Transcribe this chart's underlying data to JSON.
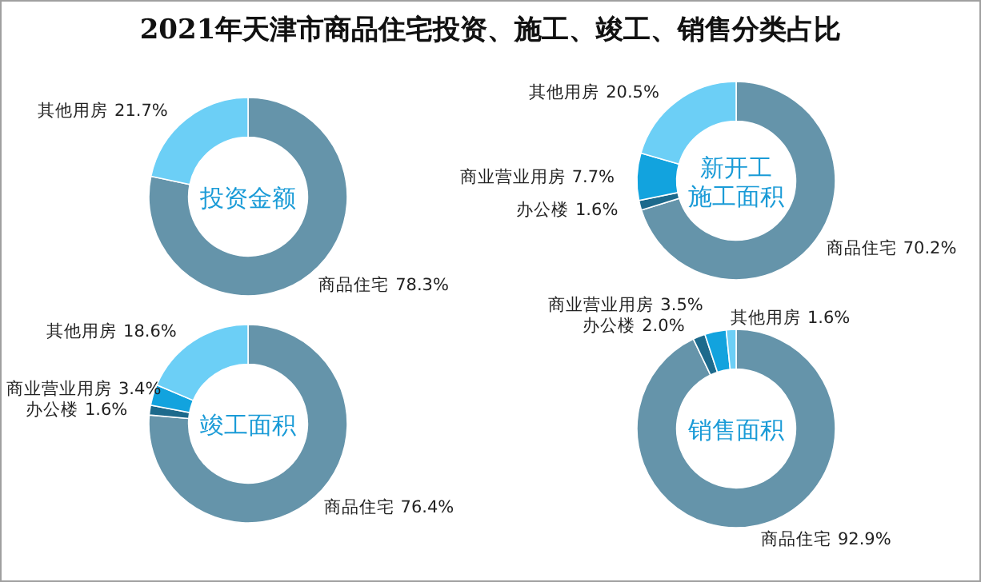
{
  "chart_data": [
    {
      "type": "donut",
      "title": "2021年天津市商品住宅投资、施工、竣工、销售分类占比",
      "annotations": [
        "投资金额"
      ],
      "categories": [
        "商品住宅",
        "其他用房"
      ],
      "values": [
        78.3,
        21.7
      ],
      "value_labels": [
        "78.3%",
        "21.7%"
      ],
      "colors": [
        "#6594aa",
        "#6ccff6"
      ]
    },
    {
      "type": "donut",
      "annotations": [
        "新开工施工面积"
      ],
      "categories": [
        "商品住宅",
        "办公楼",
        "商业营业用房",
        "其他用房"
      ],
      "values": [
        70.2,
        1.6,
        7.7,
        20.5
      ],
      "value_labels": [
        "70.2%",
        "1.6%",
        "7.7%",
        "20.5%"
      ],
      "colors": [
        "#6594aa",
        "#1d6a8c",
        "#12a3de",
        "#6ccff6"
      ]
    },
    {
      "type": "donut",
      "annotations": [
        "竣工面积"
      ],
      "categories": [
        "商品住宅",
        "办公楼",
        "商业营业用房",
        "其他用房"
      ],
      "values": [
        76.4,
        1.6,
        3.4,
        18.6
      ],
      "value_labels": [
        "76.4%",
        "1.6%",
        "3.4%",
        "18.6%"
      ],
      "colors": [
        "#6594aa",
        "#1d6a8c",
        "#12a3de",
        "#6ccff6"
      ]
    },
    {
      "type": "donut",
      "annotations": [
        "销售面积"
      ],
      "categories": [
        "商品住宅",
        "办公楼",
        "商业营业用房",
        "其他用房"
      ],
      "values": [
        92.9,
        2.0,
        3.5,
        1.6
      ],
      "value_labels": [
        "92.9%",
        "2.0%",
        "3.5%",
        "1.6%"
      ],
      "colors": [
        "#6594aa",
        "#1d6a8c",
        "#12a3de",
        "#6ccff6"
      ]
    }
  ]
}
